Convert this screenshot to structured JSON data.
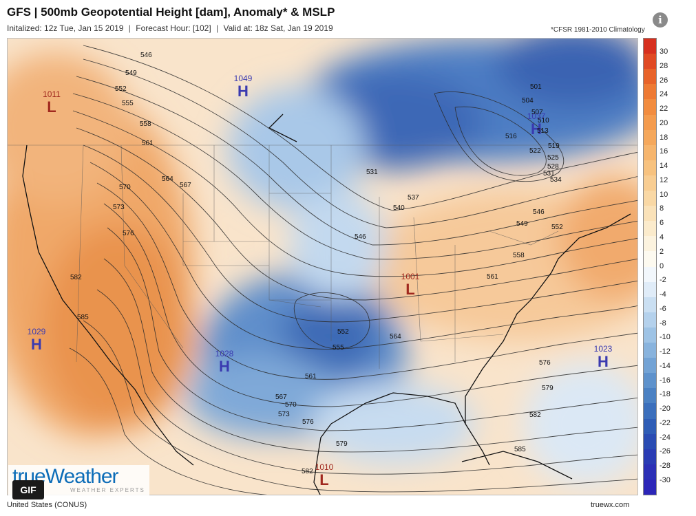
{
  "header": {
    "title": "GFS | 500mb Geopotential Height [dam], Anomaly* & MSLP",
    "init_text": "Initalized: 12z Tue, Jan 15 2019",
    "forecast_text": "Forecast Hour: [102]",
    "valid_text": "Valid at: 18z Sat, Jan 19 2019",
    "separator": "|",
    "climo_note": "*CFSR 1981-2010 Climatology"
  },
  "footer": {
    "region": "United States (CONUS)",
    "site": "truewx.com",
    "brand": "trueWeather",
    "brand_sub": "WEATHER EXPERTS",
    "gif_button": "GIF"
  },
  "colors": {
    "high": "#3a3ab0",
    "low": "#a0281e",
    "contour": "#2a2a2a",
    "coast": "#111111",
    "border": "#555555"
  },
  "colorbar": {
    "ticks": [
      "30",
      "28",
      "26",
      "24",
      "22",
      "20",
      "18",
      "16",
      "14",
      "12",
      "10",
      "8",
      "6",
      "4",
      "2",
      "0",
      "-2",
      "-4",
      "-6",
      "-8",
      "-10",
      "-12",
      "-14",
      "-16",
      "-18",
      "-20",
      "-22",
      "-24",
      "-26",
      "-28",
      "-30"
    ],
    "colors": [
      "#d7301f",
      "#e04a24",
      "#e8632a",
      "#ee7a34",
      "#f28c3f",
      "#f49b4d",
      "#f5a85c",
      "#f6b56d",
      "#f7c27f",
      "#f8cd92",
      "#f9d8a5",
      "#fae2b9",
      "#fbebcc",
      "#fcf3df",
      "#fdfaf0",
      "#f2f7fc",
      "#e0ecf8",
      "#cadff2",
      "#b4d1ec",
      "#9ec3e5",
      "#88b3dd",
      "#73a3d5",
      "#5e92cc",
      "#4b81c3",
      "#3b6fbc",
      "#2f5db6",
      "#2a4cb3",
      "#2a3cb4",
      "#2c30b6",
      "#2c26b8"
    ]
  },
  "pressure_centers": [
    {
      "type": "H",
      "value": "1049"
    },
    {
      "type": "H",
      "value": "1037"
    },
    {
      "type": "L",
      "value": "1011"
    },
    {
      "type": "L",
      "value": "1001"
    },
    {
      "type": "H",
      "value": "1029"
    },
    {
      "type": "H",
      "value": "1028"
    },
    {
      "type": "H",
      "value": "1023"
    },
    {
      "type": "L",
      "value": "1010"
    }
  ],
  "height_labels": [
    "546",
    "549",
    "552",
    "555",
    "558",
    "561",
    "564",
    "567",
    "570",
    "573",
    "576",
    "582",
    "585",
    "501",
    "504",
    "507",
    "510",
    "513",
    "516",
    "522",
    "519",
    "525",
    "528",
    "531",
    "534",
    "531",
    "537",
    "540",
    "546",
    "546",
    "549",
    "552",
    "558",
    "561",
    "552",
    "555",
    "561",
    "564",
    "567",
    "570",
    "573",
    "576",
    "576",
    "579",
    "579",
    "582",
    "585",
    "582"
  ]
}
